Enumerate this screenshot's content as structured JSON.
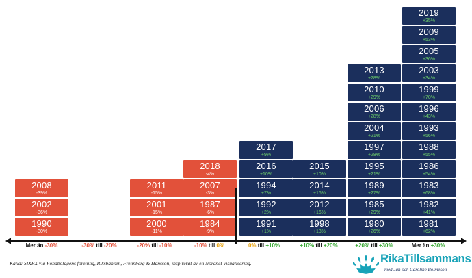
{
  "chart_data": {
    "type": "table",
    "categories": [
      {
        "label": "Mer än ",
        "low": "",
        "high": "-30%",
        "sep": ""
      },
      {
        "label": "",
        "low": "-30%",
        "high": "-20%",
        "sep": " till "
      },
      {
        "label": "",
        "low": "-20%",
        "high": "-10%",
        "sep": " till "
      },
      {
        "label": "",
        "low": "-10%",
        "high": "0%",
        "sep": " till "
      },
      {
        "label": "",
        "low": "0%",
        "high": "+10%",
        "sep": " till "
      },
      {
        "label": "",
        "low": "+10%",
        "high": "+20%",
        "sep": " till "
      },
      {
        "label": "",
        "low": "+20%",
        "high": "+30%",
        "sep": " till "
      },
      {
        "label": "Mer än ",
        "low": "",
        "high": "+30%",
        "sep": ""
      }
    ],
    "columns": [
      [
        {
          "year": "1990",
          "ret": "-30%"
        },
        {
          "year": "2002",
          "ret": "-36%"
        },
        {
          "year": "2008",
          "ret": "-39%"
        }
      ],
      [],
      [
        {
          "year": "2000",
          "ret": "-11%"
        },
        {
          "year": "2001",
          "ret": "-15%"
        },
        {
          "year": "2011",
          "ret": "-15%"
        }
      ],
      [
        {
          "year": "1984",
          "ret": "-9%"
        },
        {
          "year": "1987",
          "ret": "-6%"
        },
        {
          "year": "2007",
          "ret": "-3%"
        },
        {
          "year": "2018",
          "ret": "-4%"
        }
      ],
      [
        {
          "year": "1991",
          "ret": "+1%"
        },
        {
          "year": "1992",
          "ret": "+2%"
        },
        {
          "year": "1994",
          "ret": "+7%"
        },
        {
          "year": "2016",
          "ret": "+10%"
        },
        {
          "year": "2017",
          "ret": "+9%"
        }
      ],
      [
        {
          "year": "1998",
          "ret": "+13%"
        },
        {
          "year": "2012",
          "ret": "+16%"
        },
        {
          "year": "2014",
          "ret": "+16%"
        },
        {
          "year": "2015",
          "ret": "+10%"
        }
      ],
      [
        {
          "year": "1980",
          "ret": "+26%"
        },
        {
          "year": "1985",
          "ret": "+29%"
        },
        {
          "year": "1989",
          "ret": "+27%"
        },
        {
          "year": "1995",
          "ret": "+21%"
        },
        {
          "year": "1997",
          "ret": "+28%"
        },
        {
          "year": "2004",
          "ret": "+21%"
        },
        {
          "year": "2006",
          "ret": "+28%"
        },
        {
          "year": "2010",
          "ret": "+29%"
        },
        {
          "year": "2013",
          "ret": "+28%"
        }
      ],
      [
        {
          "year": "1981",
          "ret": "+62%"
        },
        {
          "year": "1982",
          "ret": "+41%"
        },
        {
          "year": "1983",
          "ret": "+68%"
        },
        {
          "year": "1986",
          "ret": "+54%"
        },
        {
          "year": "1988",
          "ret": "+55%"
        },
        {
          "year": "1993",
          "ret": "+56%"
        },
        {
          "year": "1996",
          "ret": "+43%"
        },
        {
          "year": "1999",
          "ret": "+70%"
        },
        {
          "year": "2003",
          "ret": "+34%"
        },
        {
          "year": "2005",
          "ret": "+36%"
        },
        {
          "year": "2009",
          "ret": "+53%"
        },
        {
          "year": "2019",
          "ret": "+35%"
        }
      ]
    ]
  },
  "source": "Källa: SIXRX via Fondbolagens förening, Riksbanken, Frennberg & Hansson, inspirerat av en Nordnet-visualisering.",
  "logo": {
    "name": "RikaTillsammans",
    "tagline": "med Jan och Caroline Bolmeson"
  },
  "colors": {
    "negative": "#e2513a",
    "positive": "#1b2f5c",
    "positive_text": "#6fd16a",
    "neutral_label": "#e8a310",
    "brand": "#17a3b8"
  }
}
